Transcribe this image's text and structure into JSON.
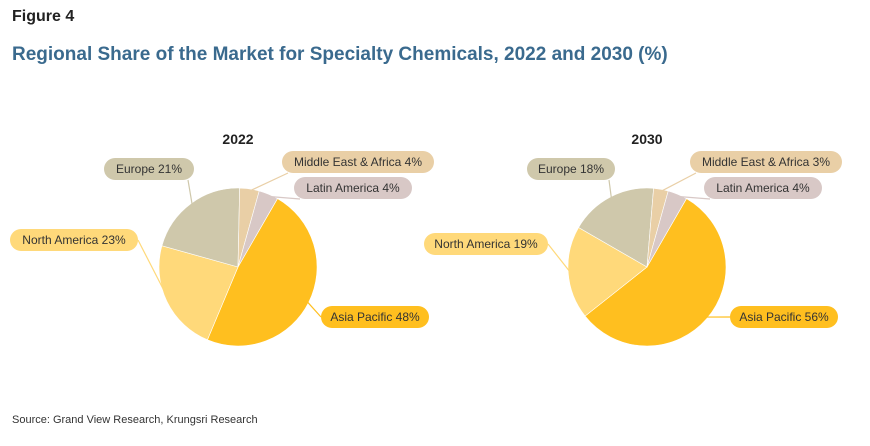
{
  "figure_label": "Figure 4",
  "title": "Regional Share of the Market for Specialty Chemicals, 2022 and 2030 (%)",
  "source": "Source: Grand View Research, Krungsri Research",
  "chart_data": [
    {
      "type": "pie",
      "title": "2022",
      "labels": [
        "Asia Pacific",
        "North America",
        "Europe",
        "Middle East & Africa",
        "Latin America"
      ],
      "values": [
        48,
        23,
        21,
        4,
        4
      ],
      "callouts": [
        "Asia Pacific 48%",
        "North America 23%",
        "Europe 21%",
        "Middle East & Africa 4%",
        "Latin America 4%"
      ],
      "colors": [
        "#ffbf1f",
        "#ffd97a",
        "#cfc8ab",
        "#e9cfa6",
        "#d8c8c6"
      ]
    },
    {
      "type": "pie",
      "title": "2030",
      "labels": [
        "Asia Pacific",
        "North America",
        "Europe",
        "Middle East & Africa",
        "Latin America"
      ],
      "values": [
        56,
        19,
        18,
        3,
        4
      ],
      "callouts": [
        "Asia Pacific 56%",
        "North America 19%",
        "Europe 18%",
        "Middle East & Africa 3%",
        "Latin America 4%"
      ],
      "colors": [
        "#ffbf1f",
        "#ffd97a",
        "#cfc8ab",
        "#e9cfa6",
        "#d8c8c6"
      ]
    }
  ]
}
